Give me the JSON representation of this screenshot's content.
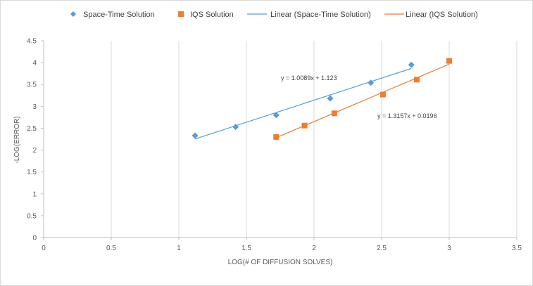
{
  "chart_data": {
    "type": "scatter",
    "xlabel": "LOG(# OF DIFFUSION SOLVES)",
    "ylabel": "-LOG(ERROR)",
    "xlim": [
      0,
      3.5
    ],
    "ylim": [
      0,
      4.5
    ],
    "x_ticks": [
      0,
      0.5,
      1,
      1.5,
      2,
      2.5,
      3,
      3.5
    ],
    "x_tick_labels": [
      "0",
      "0.5",
      "1",
      "1.5",
      "2",
      "2.5",
      "3",
      "3.5"
    ],
    "y_ticks": [
      0,
      0.5,
      1,
      1.5,
      2,
      2.5,
      3,
      3.5,
      4,
      4.5
    ],
    "y_tick_labels": [
      "0",
      "0.5",
      "1",
      "1.5",
      "2",
      "2.5",
      "3",
      "3.5",
      "4",
      "4.5"
    ],
    "grid": "vertical",
    "legend_position": "top",
    "series": [
      {
        "name": "Space-Time Solution",
        "marker": "diamond",
        "color": "#5b9bd5",
        "points": [
          {
            "x": 1.12,
            "y": 2.33
          },
          {
            "x": 1.42,
            "y": 2.53
          },
          {
            "x": 1.72,
            "y": 2.8
          },
          {
            "x": 2.12,
            "y": 3.18
          },
          {
            "x": 2.42,
            "y": 3.54
          },
          {
            "x": 2.72,
            "y": 3.95
          }
        ]
      },
      {
        "name": "IQS Solution",
        "marker": "square",
        "color": "#ed7d31",
        "points": [
          {
            "x": 1.72,
            "y": 2.3
          },
          {
            "x": 1.93,
            "y": 2.56
          },
          {
            "x": 2.15,
            "y": 2.84
          },
          {
            "x": 2.51,
            "y": 3.27
          },
          {
            "x": 2.76,
            "y": 3.61
          },
          {
            "x": 3.0,
            "y": 4.04
          }
        ]
      }
    ],
    "trendlines": [
      {
        "name": "Linear (Space-Time Solution)",
        "color": "#5b9bd5",
        "slope": 1.0089,
        "intercept": 1.123,
        "x_range": [
          1.12,
          2.72
        ],
        "equation": "y = 1.0089x + 1.123"
      },
      {
        "name": "Linear (IQS Solution)",
        "color": "#ed7d31",
        "slope": 1.3157,
        "intercept": 0.0196,
        "x_range": [
          1.72,
          3.0
        ],
        "equation": "y = 1.3157x + 0.0196"
      }
    ]
  }
}
